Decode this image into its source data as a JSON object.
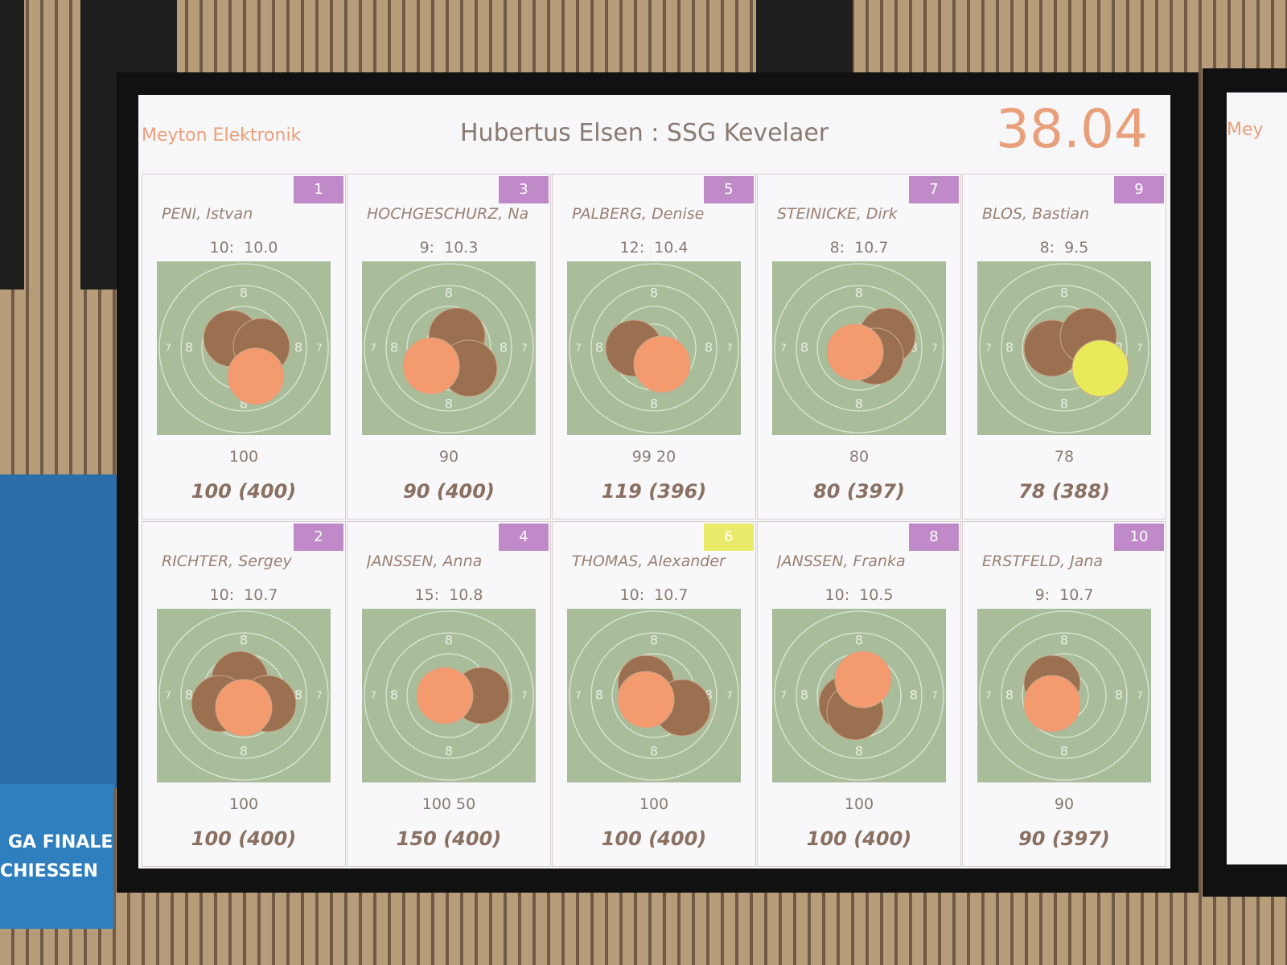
{
  "header": {
    "brand": "Meyton Elektronik",
    "title": "Hubertus Elsen : SSG Kevelaer",
    "clock": "38.04"
  },
  "target": {
    "inner_label": "8",
    "outer_label": "7"
  },
  "banner": {
    "line1": "GA FINALE",
    "line2": "CHIESSEN"
  },
  "side_screen": {
    "brand": "Mey"
  },
  "cards": [
    {
      "lane": "1",
      "name": "PENI, Istvan",
      "shots": "10:  10.0",
      "series": "100",
      "total": "100 (400)",
      "badge_color": "#c08ac8"
    },
    {
      "lane": "3",
      "name": "HOCHGESCHURZ, Na",
      "shots": "9:  10.3",
      "series": "90",
      "total": "90 (400)",
      "badge_color": "#c08ac8"
    },
    {
      "lane": "5",
      "name": "PALBERG, Denise",
      "shots": "12:  10.4",
      "series": "99 20",
      "total": "119 (396)",
      "badge_color": "#c08ac8"
    },
    {
      "lane": "7",
      "name": "STEINICKE, Dirk",
      "shots": "8:  10.7",
      "series": "80",
      "total": "80 (397)",
      "badge_color": "#c08ac8"
    },
    {
      "lane": "9",
      "name": "BLOS, Bastian",
      "shots": "8:  9.5",
      "series": "78",
      "total": "78 (388)",
      "badge_color": "#c08ac8"
    },
    {
      "lane": "2",
      "name": "RICHTER, Sergey",
      "shots": "10:  10.7",
      "series": "100",
      "total": "100 (400)",
      "badge_color": "#c08ac8"
    },
    {
      "lane": "4",
      "name": "JANSSEN, Anna",
      "shots": "15:  10.8",
      "series": "100 50",
      "total": "150 (400)",
      "badge_color": "#c08ac8"
    },
    {
      "lane": "6",
      "name": "THOMAS, Alexander",
      "shots": "10:  10.7",
      "series": "100",
      "total": "100 (400)",
      "badge_color": "#eaea6a"
    },
    {
      "lane": "8",
      "name": "JANSSEN, Franka",
      "shots": "10:  10.5",
      "series": "100",
      "total": "100 (400)",
      "badge_color": "#c08ac8"
    },
    {
      "lane": "10",
      "name": "ERSTFELD, Jana",
      "shots": "9:  10.7",
      "series": "90",
      "total": "90 (397)",
      "badge_color": "#c08ac8"
    }
  ]
}
